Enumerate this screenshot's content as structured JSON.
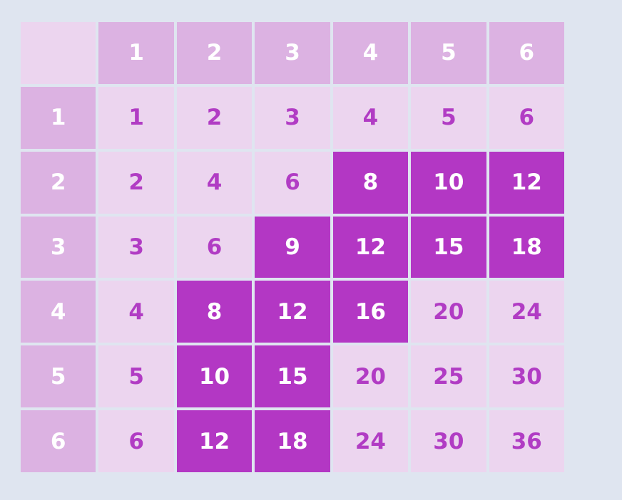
{
  "page": {
    "background_color": "#dfe5f0"
  },
  "palette": {
    "header_cell_bg": "#dcb2e2",
    "header_cell_text": "#ffffff",
    "product_cell_bg": "#ecd5ef",
    "product_cell_text": "#b13cc4",
    "highlight_cell_bg": "#b337c4",
    "highlight_cell_text": "#ffffff",
    "grid_gap_color": "#dfe5f0"
  },
  "chart_data": {
    "type": "table",
    "title": "",
    "description": "Multiplication table 1-6 with a diagonal band of highlighted product cells",
    "col_headers": [
      "1",
      "2",
      "3",
      "4",
      "5",
      "6"
    ],
    "row_headers": [
      "1",
      "2",
      "3",
      "4",
      "5",
      "6"
    ],
    "values": [
      [
        1,
        2,
        3,
        4,
        5,
        6
      ],
      [
        2,
        4,
        6,
        8,
        10,
        12
      ],
      [
        3,
        6,
        9,
        12,
        15,
        18
      ],
      [
        4,
        8,
        12,
        16,
        20,
        24
      ],
      [
        5,
        10,
        15,
        20,
        25,
        30
      ],
      [
        6,
        12,
        18,
        24,
        30,
        36
      ]
    ],
    "highlighted_cells_row_col": [
      [
        2,
        4
      ],
      [
        2,
        5
      ],
      [
        2,
        6
      ],
      [
        3,
        3
      ],
      [
        3,
        4
      ],
      [
        3,
        5
      ],
      [
        3,
        6
      ],
      [
        4,
        2
      ],
      [
        4,
        3
      ],
      [
        4,
        4
      ],
      [
        5,
        2
      ],
      [
        5,
        3
      ],
      [
        6,
        2
      ],
      [
        6,
        3
      ]
    ],
    "highlighted_values": [
      8,
      10,
      12,
      9,
      12,
      15,
      18,
      8,
      12,
      16,
      10,
      15,
      12,
      18
    ]
  },
  "grid": {
    "columns": 7,
    "rows": 7,
    "cells": [
      {
        "label": "",
        "kind": "corner"
      },
      {
        "label": "1",
        "kind": "col-header"
      },
      {
        "label": "2",
        "kind": "col-header"
      },
      {
        "label": "3",
        "kind": "col-header"
      },
      {
        "label": "4",
        "kind": "col-header"
      },
      {
        "label": "5",
        "kind": "col-header"
      },
      {
        "label": "6",
        "kind": "col-header"
      },
      {
        "label": "1",
        "kind": "row-header"
      },
      {
        "label": "1",
        "kind": "product"
      },
      {
        "label": "2",
        "kind": "product"
      },
      {
        "label": "3",
        "kind": "product"
      },
      {
        "label": "4",
        "kind": "product"
      },
      {
        "label": "5",
        "kind": "product"
      },
      {
        "label": "6",
        "kind": "product"
      },
      {
        "label": "2",
        "kind": "row-header"
      },
      {
        "label": "2",
        "kind": "product"
      },
      {
        "label": "4",
        "kind": "product"
      },
      {
        "label": "6",
        "kind": "product"
      },
      {
        "label": "8",
        "kind": "product-highlight"
      },
      {
        "label": "10",
        "kind": "product-highlight"
      },
      {
        "label": "12",
        "kind": "product-highlight"
      },
      {
        "label": "3",
        "kind": "row-header"
      },
      {
        "label": "3",
        "kind": "product"
      },
      {
        "label": "6",
        "kind": "product"
      },
      {
        "label": "9",
        "kind": "product-highlight"
      },
      {
        "label": "12",
        "kind": "product-highlight"
      },
      {
        "label": "15",
        "kind": "product-highlight"
      },
      {
        "label": "18",
        "kind": "product-highlight"
      },
      {
        "label": "4",
        "kind": "row-header"
      },
      {
        "label": "4",
        "kind": "product"
      },
      {
        "label": "8",
        "kind": "product-highlight"
      },
      {
        "label": "12",
        "kind": "product-highlight"
      },
      {
        "label": "16",
        "kind": "product-highlight"
      },
      {
        "label": "20",
        "kind": "product"
      },
      {
        "label": "24",
        "kind": "product"
      },
      {
        "label": "5",
        "kind": "row-header"
      },
      {
        "label": "5",
        "kind": "product"
      },
      {
        "label": "10",
        "kind": "product-highlight"
      },
      {
        "label": "15",
        "kind": "product-highlight"
      },
      {
        "label": "20",
        "kind": "product"
      },
      {
        "label": "25",
        "kind": "product"
      },
      {
        "label": "30",
        "kind": "product"
      },
      {
        "label": "6",
        "kind": "row-header"
      },
      {
        "label": "6",
        "kind": "product"
      },
      {
        "label": "12",
        "kind": "product-highlight"
      },
      {
        "label": "18",
        "kind": "product-highlight"
      },
      {
        "label": "24",
        "kind": "product"
      },
      {
        "label": "30",
        "kind": "product"
      },
      {
        "label": "36",
        "kind": "product"
      }
    ]
  }
}
